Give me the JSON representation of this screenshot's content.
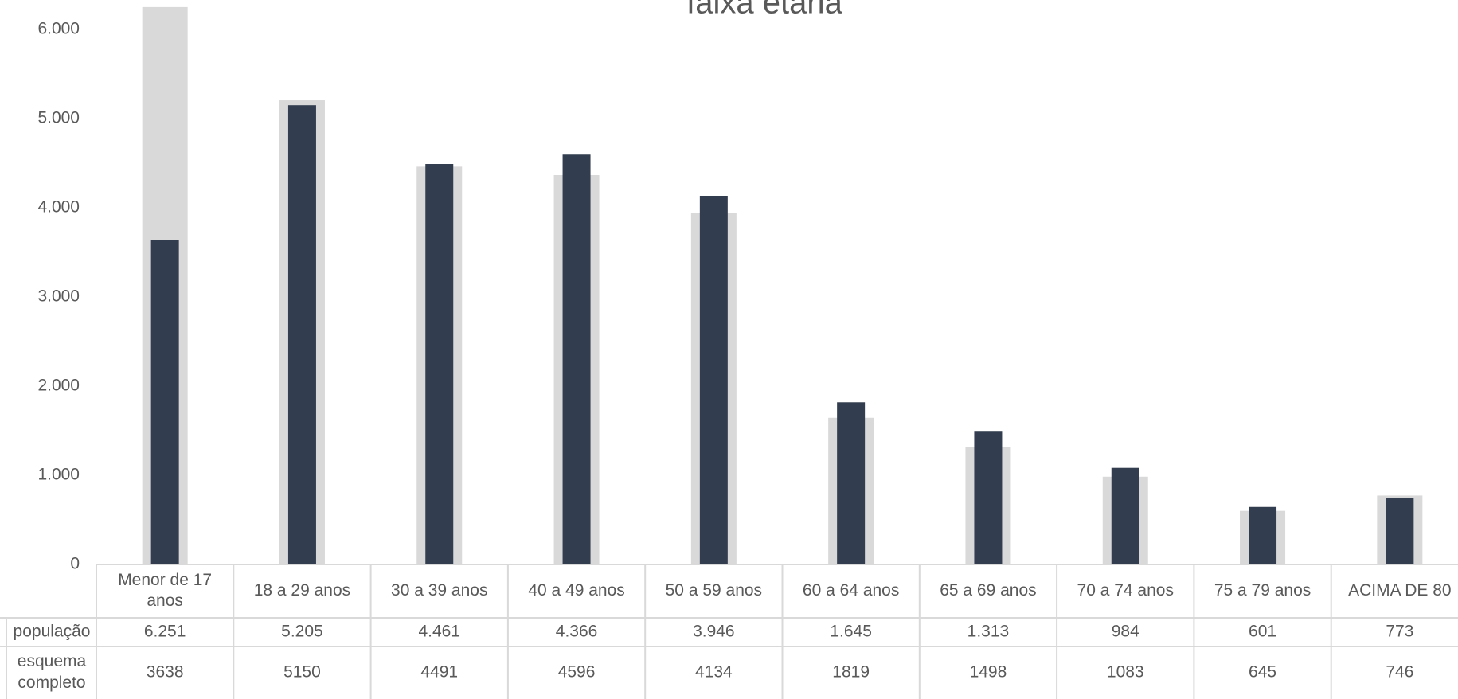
{
  "chart_data": {
    "type": "bar",
    "title": "faixa etária",
    "categories": [
      [
        "Menor de 17",
        "anos"
      ],
      [
        "18 a 29 anos"
      ],
      [
        "30 a 39 anos"
      ],
      [
        "40 a 49 anos"
      ],
      [
        "50 a 59 anos"
      ],
      [
        "60 a 64 anos"
      ],
      [
        "65 a 69 anos"
      ],
      [
        "70 a 74 anos"
      ],
      [
        "75 a 79 anos"
      ],
      [
        "ACIMA DE 80"
      ]
    ],
    "series": [
      {
        "name": "população",
        "label_lines": [
          "população"
        ],
        "color": "#d9d9d9",
        "values": [
          6251,
          5205,
          4461,
          4366,
          3946,
          1645,
          1313,
          984,
          601,
          773
        ],
        "display": [
          "6.251",
          "5.205",
          "4.461",
          "4.366",
          "3.946",
          "1.645",
          "1.313",
          "984",
          "601",
          "773"
        ]
      },
      {
        "name": "esquema completo",
        "label_lines": [
          "esquema",
          "completo"
        ],
        "color": "#323e4f",
        "values": [
          3638,
          5150,
          4491,
          4596,
          4134,
          1819,
          1498,
          1083,
          645,
          746
        ],
        "display": [
          "3638",
          "5150",
          "4491",
          "4596",
          "4134",
          "1819",
          "1498",
          "1083",
          "645",
          "746"
        ]
      }
    ],
    "ylim": [
      0,
      6000
    ],
    "yticks": [
      0,
      1000,
      2000,
      3000,
      4000,
      5000,
      6000
    ],
    "ytick_labels": [
      "0",
      "1.000",
      "2.000",
      "3.000",
      "4.000",
      "5.000",
      "6.000"
    ],
    "grid": false,
    "legend": "data table"
  }
}
